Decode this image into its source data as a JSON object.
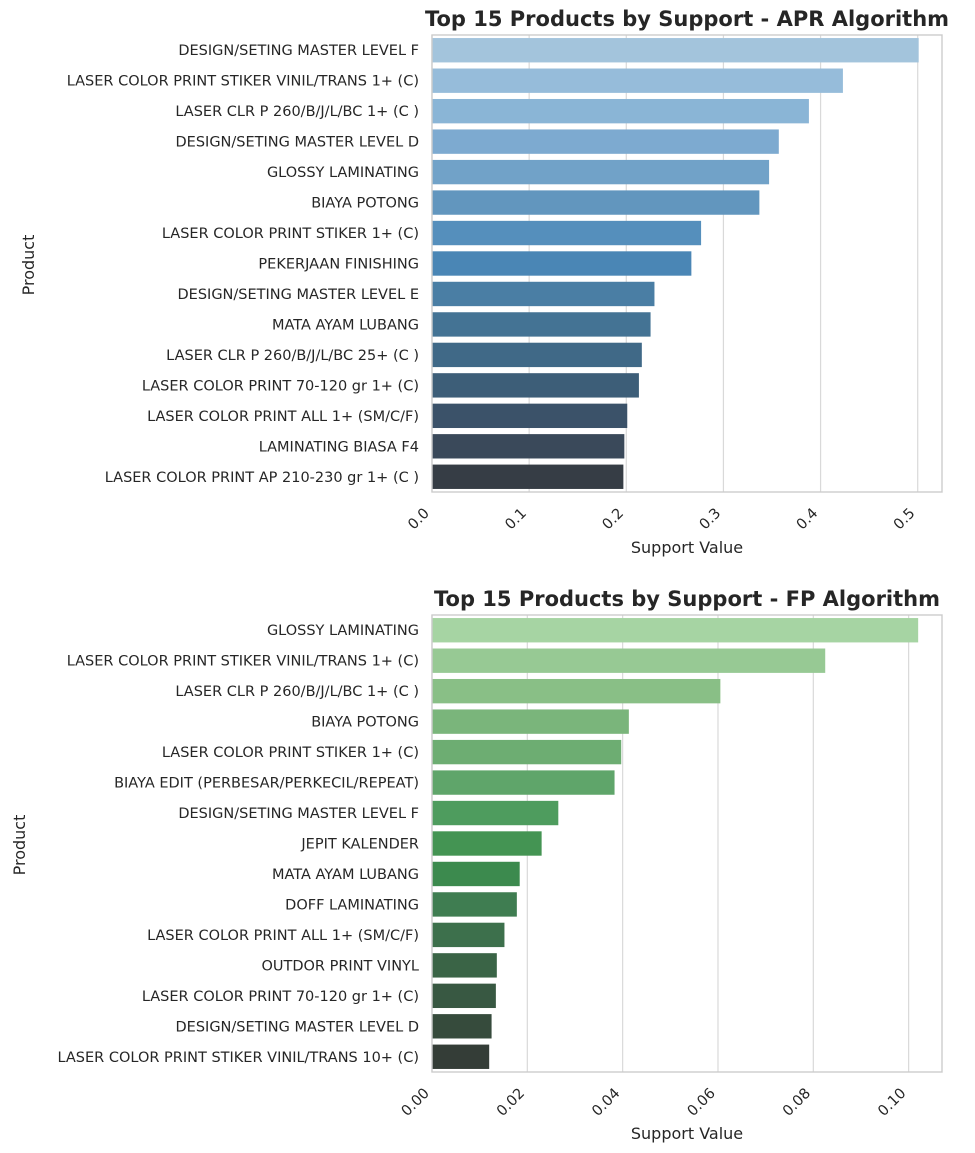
{
  "chart_data": [
    {
      "type": "bar",
      "orientation": "horizontal",
      "title": "Top 15 Products by Support - APR Algorithm",
      "xlabel": "Support Value",
      "ylabel": "Product",
      "xlim": [
        0,
        0.525
      ],
      "xticks": [
        0.0,
        0.1,
        0.2,
        0.3,
        0.4,
        0.5
      ],
      "xtick_labels": [
        "0.0",
        "0.1",
        "0.2",
        "0.3",
        "0.4",
        "0.5"
      ],
      "grid": "vertical",
      "palette": [
        "#a3c4dc",
        "#96bcda",
        "#8ab5d6",
        "#7daad0",
        "#71a2c8",
        "#6296be",
        "#558fbc",
        "#4a86b5",
        "#4a7ea4",
        "#447394",
        "#406987",
        "#3d5e78",
        "#3b5269",
        "#3a495a",
        "#363d45"
      ],
      "categories": [
        "DESIGN/SETING MASTER LEVEL F",
        "LASER COLOR PRINT STIKER VINIL/TRANS  1+ (C)",
        "LASER CLR P 260/B/J/L/BC 1+ (C )",
        "DESIGN/SETING MASTER LEVEL D",
        "GLOSSY LAMINATING",
        "BIAYA POTONG",
        "LASER COLOR PRINT STIKER 1+ (C)",
        "PEKERJAAN FINISHING",
        "DESIGN/SETING MASTER LEVEL E",
        "MATA AYAM LUBANG",
        "LASER CLR P 260/B/J/L/BC 25+ (C )",
        "LASER COLOR PRINT 70-120 gr 1+ (C)",
        "LASER COLOR PRINT ALL 1+ (SM/C/F)",
        "LAMINATING BIASA F4",
        "LASER COLOR PRINT AP 210-230 gr 1+ (C )"
      ],
      "values": [
        0.501,
        0.423,
        0.388,
        0.357,
        0.347,
        0.337,
        0.277,
        0.267,
        0.229,
        0.225,
        0.216,
        0.213,
        0.201,
        0.198,
        0.197
      ]
    },
    {
      "type": "bar",
      "orientation": "horizontal",
      "title": "Top 15 Products by Support - FP Algorithm",
      "xlabel": "Support Value",
      "ylabel": "Product",
      "xlim": [
        0,
        0.107
      ],
      "xticks": [
        0.0,
        0.02,
        0.04,
        0.06,
        0.08,
        0.1
      ],
      "xtick_labels": [
        "0.00",
        "0.02",
        "0.04",
        "0.06",
        "0.08",
        "0.10"
      ],
      "grid": "vertical",
      "palette": [
        "#a6d4a3",
        "#97c994",
        "#89bf86",
        "#7ab57b",
        "#6dad72",
        "#5fa56a",
        "#4e9c5e",
        "#449453",
        "#3c8a4e",
        "#3f7d51",
        "#3d704c",
        "#3a6446",
        "#385842",
        "#364b3c",
        "#343d37"
      ],
      "categories": [
        "GLOSSY LAMINATING",
        "LASER COLOR PRINT STIKER VINIL/TRANS  1+ (C)",
        "LASER CLR P 260/B/J/L/BC 1+ (C )",
        "BIAYA POTONG",
        "LASER COLOR PRINT STIKER 1+ (C)",
        "BIAYA EDIT (PERBESAR/PERKECIL/REPEAT)",
        "DESIGN/SETING MASTER LEVEL F",
        "JEPIT KALENDER",
        "MATA AYAM LUBANG",
        "DOFF LAMINATING",
        "LASER COLOR PRINT ALL 1+ (SM/C/F)",
        "OUTDOR PRINT VINYL",
        "LASER COLOR PRINT 70-120 gr 1+ (C)",
        "DESIGN/SETING MASTER LEVEL D",
        "LASER COLOR PRINT STIKER VINIL/TRANS  10+ (C)"
      ],
      "values": [
        0.102,
        0.0825,
        0.0605,
        0.0413,
        0.0397,
        0.0383,
        0.0265,
        0.023,
        0.0184,
        0.0178,
        0.0152,
        0.0136,
        0.0134,
        0.0125,
        0.012
      ]
    }
  ]
}
